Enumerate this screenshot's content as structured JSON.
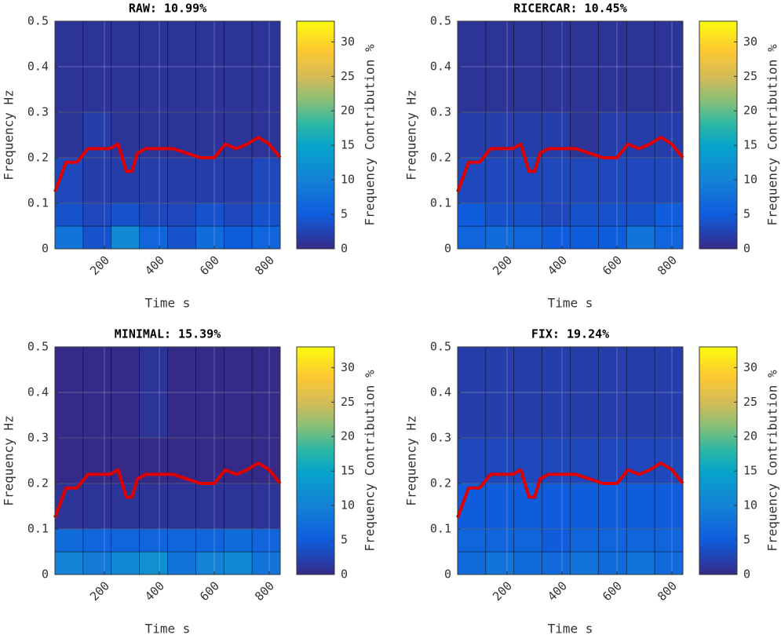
{
  "chart_data": [
    {
      "type": "contour",
      "title": "RAW: 10.99%",
      "xlabel": "Time s",
      "ylabel": "Frequency Hz",
      "colorbar_label": "Frequency Contribution %",
      "xlim": [
        20,
        840
      ],
      "ylim": [
        0,
        0.5
      ],
      "xticks": [
        200,
        400,
        600,
        800
      ],
      "yticks": [
        0,
        0.1,
        0.2,
        0.3,
        0.4,
        0.5
      ],
      "clim": [
        0,
        33
      ],
      "cticks": [
        0,
        5,
        10,
        15,
        20,
        25,
        30
      ],
      "xbins": [
        20,
        122.5,
        225,
        327.5,
        430,
        532.5,
        635,
        737.5,
        840
      ],
      "ybins": [
        0,
        0.05,
        0.1,
        0.2,
        0.3,
        0.5
      ],
      "z": [
        [
          8,
          4,
          11,
          6,
          4,
          7,
          5,
          6
        ],
        [
          4,
          3,
          4,
          3,
          3,
          4,
          3,
          4
        ],
        [
          3,
          2,
          2,
          2,
          2,
          2,
          2,
          3
        ],
        [
          1,
          2,
          1,
          1,
          1,
          1,
          1,
          1
        ],
        [
          1,
          1,
          1,
          1,
          1,
          1,
          1,
          1
        ]
      ],
      "line": {
        "color": "#e00000",
        "x": [
          20,
          60,
          100,
          140,
          180,
          220,
          250,
          280,
          300,
          320,
          350,
          400,
          450,
          500,
          550,
          600,
          640,
          680,
          720,
          760,
          800,
          840
        ],
        "values": [
          0.125,
          0.19,
          0.19,
          0.22,
          0.22,
          0.22,
          0.23,
          0.17,
          0.17,
          0.21,
          0.22,
          0.22,
          0.22,
          0.21,
          0.2,
          0.2,
          0.23,
          0.22,
          0.23,
          0.245,
          0.23,
          0.2
        ]
      }
    },
    {
      "type": "contour",
      "title": "RICERCAR: 10.45%",
      "xlabel": "Time s",
      "ylabel": "Frequency Hz",
      "colorbar_label": "Frequency Contribution %",
      "xlim": [
        20,
        840
      ],
      "ylim": [
        0,
        0.5
      ],
      "xticks": [
        200,
        400,
        600,
        800
      ],
      "yticks": [
        0,
        0.1,
        0.2,
        0.3,
        0.4,
        0.5
      ],
      "clim": [
        0,
        33
      ],
      "cticks": [
        0,
        5,
        10,
        15,
        20,
        25,
        30
      ],
      "xbins": [
        20,
        122.5,
        225,
        327.5,
        430,
        532.5,
        635,
        737.5,
        840
      ],
      "ybins": [
        0,
        0.05,
        0.1,
        0.2,
        0.3,
        0.5
      ],
      "z": [
        [
          6,
          7,
          6,
          5,
          5,
          5,
          8,
          6
        ],
        [
          5,
          4,
          4,
          3,
          4,
          4,
          4,
          5
        ],
        [
          3,
          3,
          3,
          3,
          3,
          3,
          3,
          3
        ],
        [
          2,
          2,
          2,
          2,
          1,
          2,
          2,
          2
        ],
        [
          1,
          1,
          1,
          1,
          1,
          1,
          1,
          1
        ]
      ],
      "line": {
        "color": "#e00000",
        "x": [
          20,
          60,
          100,
          140,
          180,
          220,
          250,
          280,
          300,
          320,
          350,
          400,
          450,
          500,
          550,
          600,
          640,
          680,
          720,
          760,
          800,
          840
        ],
        "values": [
          0.125,
          0.19,
          0.19,
          0.22,
          0.22,
          0.22,
          0.23,
          0.17,
          0.17,
          0.21,
          0.22,
          0.22,
          0.22,
          0.21,
          0.2,
          0.2,
          0.23,
          0.22,
          0.23,
          0.245,
          0.23,
          0.2
        ]
      }
    },
    {
      "type": "contour",
      "title": "MINIMAL: 15.39%",
      "xlabel": "Time s",
      "ylabel": "Frequency Hz",
      "colorbar_label": "Frequency Contribution %",
      "xlim": [
        20,
        840
      ],
      "ylim": [
        0,
        0.5
      ],
      "xticks": [
        200,
        400,
        600,
        800
      ],
      "yticks": [
        0,
        0.1,
        0.2,
        0.3,
        0.4,
        0.5
      ],
      "clim": [
        0,
        33
      ],
      "cticks": [
        0,
        5,
        10,
        15,
        20,
        25,
        30
      ],
      "xbins": [
        20,
        122.5,
        225,
        327.5,
        430,
        532.5,
        635,
        737.5,
        840
      ],
      "ybins": [
        0,
        0.05,
        0.1,
        0.2,
        0.3,
        0.5
      ],
      "z": [
        [
          10,
          9,
          11,
          12,
          8,
          10,
          11,
          8
        ],
        [
          7,
          6,
          6,
          6,
          6,
          6,
          7,
          6
        ],
        [
          1,
          1,
          1,
          1,
          1,
          1,
          1,
          1
        ],
        [
          0,
          0,
          0,
          0,
          0,
          0,
          0,
          0
        ],
        [
          0,
          0,
          0,
          1,
          0,
          0,
          0,
          0
        ]
      ],
      "line": {
        "color": "#e00000",
        "x": [
          20,
          60,
          100,
          140,
          180,
          220,
          250,
          280,
          300,
          320,
          350,
          400,
          450,
          500,
          550,
          600,
          640,
          680,
          720,
          760,
          800,
          840
        ],
        "values": [
          0.125,
          0.19,
          0.19,
          0.22,
          0.22,
          0.22,
          0.23,
          0.17,
          0.17,
          0.21,
          0.22,
          0.22,
          0.22,
          0.21,
          0.2,
          0.2,
          0.23,
          0.22,
          0.23,
          0.245,
          0.23,
          0.2
        ]
      }
    },
    {
      "type": "contour",
      "title": "FIX: 19.24%",
      "xlabel": "Time s",
      "ylabel": "Frequency Hz",
      "colorbar_label": "Frequency Contribution %",
      "xlim": [
        20,
        840
      ],
      "ylim": [
        0,
        0.5
      ],
      "xticks": [
        200,
        400,
        600,
        800
      ],
      "yticks": [
        0,
        0.1,
        0.2,
        0.3,
        0.4,
        0.5
      ],
      "clim": [
        0,
        33
      ],
      "cticks": [
        0,
        5,
        10,
        15,
        20,
        25,
        30
      ],
      "xbins": [
        20,
        122.5,
        225,
        327.5,
        430,
        532.5,
        635,
        737.5,
        840
      ],
      "ybins": [
        0,
        0.05,
        0.1,
        0.2,
        0.3,
        0.5
      ],
      "z": [
        [
          7,
          8,
          7,
          7,
          8,
          7,
          8,
          7
        ],
        [
          6,
          6,
          6,
          5,
          6,
          6,
          6,
          6
        ],
        [
          5,
          5,
          5,
          5,
          5,
          5,
          5,
          5
        ],
        [
          3,
          3,
          3,
          3,
          3,
          3,
          3,
          3
        ],
        [
          2,
          2,
          2,
          2,
          2,
          2,
          2,
          2
        ]
      ],
      "line": {
        "color": "#e00000",
        "x": [
          20,
          60,
          100,
          140,
          180,
          220,
          250,
          280,
          300,
          320,
          350,
          400,
          450,
          500,
          550,
          600,
          640,
          680,
          720,
          760,
          800,
          840
        ],
        "values": [
          0.125,
          0.19,
          0.19,
          0.22,
          0.22,
          0.22,
          0.23,
          0.17,
          0.17,
          0.21,
          0.22,
          0.22,
          0.22,
          0.21,
          0.2,
          0.2,
          0.23,
          0.22,
          0.23,
          0.245,
          0.23,
          0.2
        ]
      }
    }
  ]
}
